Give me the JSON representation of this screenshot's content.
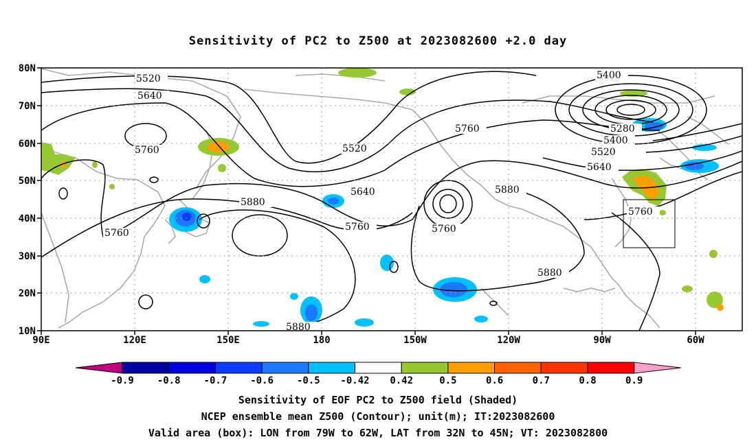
{
  "title": "Sensitivity of PC2 to Z500 at 2023082600 +2.0 day",
  "lat_labels": [
    "80N",
    "70N",
    "60N",
    "50N",
    "40N",
    "30N",
    "20N",
    "10N"
  ],
  "lon_labels": [
    "90E",
    "120E",
    "150E",
    "180",
    "150W",
    "120W",
    "90W",
    "60W"
  ],
  "contour_labels": [
    "5520",
    "5640",
    "5760",
    "5400",
    "5280",
    "5400",
    "5520",
    "5640",
    "5760",
    "5520",
    "5640",
    "5760",
    "5880",
    "5760",
    "5880",
    "5760",
    "5880",
    "5760",
    "5880"
  ],
  "colorbar": {
    "labels": [
      "-0.9",
      "-0.8",
      "-0.7",
      "-0.6",
      "-0.5",
      "-0.42",
      "0.42",
      "0.5",
      "0.6",
      "0.7",
      "0.8",
      "0.9"
    ],
    "colors": [
      "#c00080",
      "#0000a0",
      "#0000e0",
      "#0a3cff",
      "#1e78ff",
      "#00c0ff",
      "#ffffff",
      "#96c832",
      "#ffa000",
      "#ff6400",
      "#ff3200",
      "#ff0000",
      "#ffa0c8"
    ]
  },
  "caption": {
    "line1": "Sensitivity of EOF PC2 to Z500 field (Shaded)",
    "line2": "NCEP ensemble mean Z500 (Contour); unit(m); IT:2023082600",
    "line3": "Valid area (box): LON from 79W to 62W, LAT from 32N to 45N; VT: 2023082800"
  }
}
